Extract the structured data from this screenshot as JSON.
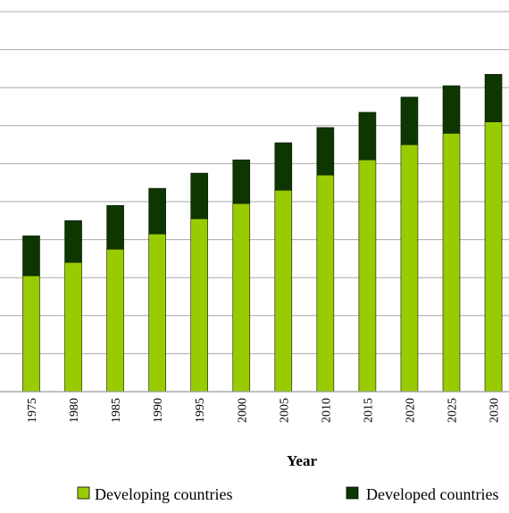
{
  "chart_data": {
    "type": "bar",
    "stacked": true,
    "title": "",
    "xlabel": "Year",
    "ylabel": "",
    "categories": [
      "1975",
      "1980",
      "1985",
      "1990",
      "1995",
      "2000",
      "2005",
      "2010",
      "2015",
      "2020",
      "2025",
      "2030"
    ],
    "series": [
      {
        "name": "Developing countries",
        "color": "#99cc00",
        "values": [
          30.5,
          34,
          37.5,
          41.5,
          45.5,
          49.5,
          53,
          57,
          61,
          65,
          68,
          71
        ]
      },
      {
        "name": "Developed countries",
        "color": "#0d3600",
        "values": [
          10.5,
          11,
          11.5,
          12,
          12,
          11.5,
          12.5,
          12.5,
          12.5,
          12.5,
          12.5,
          12.5
        ]
      }
    ],
    "ylim": [
      0,
      100
    ],
    "y_grid_step": 10,
    "grid": true,
    "legend_position": "bottom"
  }
}
